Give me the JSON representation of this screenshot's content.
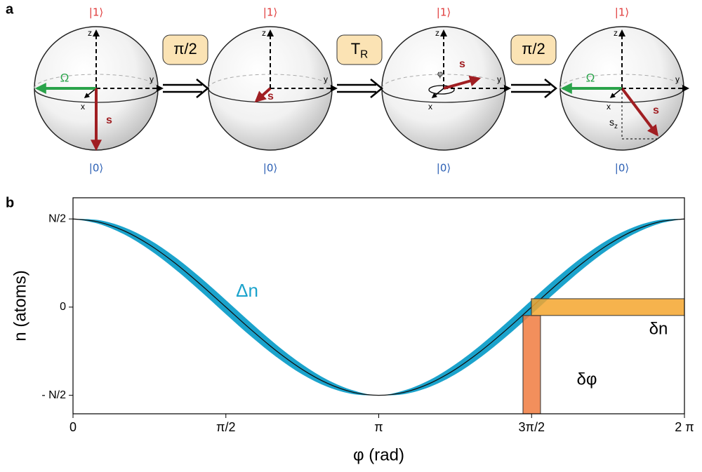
{
  "panel_a": {
    "label": "a",
    "spheres": [
      {
        "top": "|1⟩",
        "bottom": "|0⟩",
        "z": "z",
        "y": "y",
        "x": "x",
        "omega": "Ω",
        "s": "s"
      },
      {
        "top": "|1⟩",
        "bottom": "|0⟩",
        "z": "z",
        "y": "y",
        "s": "s"
      },
      {
        "top": "|1⟩",
        "bottom": "|0⟩",
        "z": "z",
        "y": "y",
        "x": "x",
        "phi": "φ",
        "s": "s"
      },
      {
        "top": "|1⟩",
        "bottom": "|0⟩",
        "z": "z",
        "y": "y",
        "x": "x",
        "omega": "Ω",
        "s": "s",
        "sz": {
          "main": "s",
          "sub": "z"
        }
      }
    ],
    "steps": [
      {
        "main": "π/2"
      },
      {
        "main": "T",
        "sub": "R"
      },
      {
        "main": "π/2"
      }
    ]
  },
  "chart_data": {
    "type": "band-line",
    "label": "b",
    "xlabel": "φ (rad)",
    "ylabel": "n (atoms)",
    "xlim": [
      0,
      6.2832
    ],
    "ylim": [
      -1.21,
      1.24
    ],
    "xticks": [
      0,
      {
        "value": 1.5708,
        "label": "π/2"
      },
      {
        "value": 3.1416,
        "label": "π"
      },
      {
        "value": 4.7124,
        "label": "3π/2"
      },
      {
        "value": 6.2832,
        "label": "2 π"
      }
    ],
    "yticks": [
      {
        "value": 1,
        "label": "N/2"
      },
      0,
      {
        "value": -1,
        "label": "- N/2"
      }
    ],
    "x": [
      0,
      0.2618,
      0.5236,
      0.7854,
      1.0472,
      1.309,
      1.5708,
      1.8326,
      2.0944,
      2.3562,
      2.618,
      2.8798,
      3.1416,
      3.4034,
      3.6652,
      3.927,
      4.1888,
      4.4506,
      4.7124,
      4.9742,
      5.236,
      5.4978,
      5.7596,
      6.0214,
      6.2832
    ],
    "values": [
      1,
      0.966,
      0.866,
      0.707,
      0.5,
      0.259,
      0,
      -0.259,
      -0.5,
      -0.707,
      -0.866,
      -0.966,
      -1,
      -0.966,
      -0.866,
      -0.707,
      -0.5,
      -0.259,
      0,
      0.259,
      0.5,
      0.707,
      0.866,
      0.966,
      1
    ],
    "line_color": "#111111",
    "band": {
      "label": "Δn",
      "color": "#1ba3cc",
      "upper": [
        1,
        0.987,
        0.906,
        0.764,
        0.569,
        0.336,
        0.08,
        -0.182,
        -0.431,
        -0.65,
        -0.826,
        -0.945,
        -1,
        -0.945,
        -0.826,
        -0.65,
        -0.431,
        -0.182,
        0.08,
        0.336,
        0.569,
        0.764,
        0.906,
        0.987,
        1
      ],
      "lower": [
        1,
        0.945,
        0.826,
        0.65,
        0.431,
        0.182,
        -0.08,
        -0.336,
        -0.569,
        -0.764,
        -0.906,
        -0.987,
        -1,
        -0.987,
        -0.906,
        -0.764,
        -0.569,
        -0.336,
        -0.08,
        0.182,
        0.431,
        0.65,
        0.826,
        0.945,
        1
      ]
    },
    "shapes": [
      {
        "label": "δφ",
        "x": [
          4.624,
          4.804
        ],
        "y": [
          -1.21,
          -0.095
        ],
        "color": "#f07b3f"
      },
      {
        "label": "δn",
        "x": [
          4.71,
          6.2832
        ],
        "y": [
          -0.095,
          0.095
        ],
        "color": "#f5a62e"
      }
    ]
  }
}
